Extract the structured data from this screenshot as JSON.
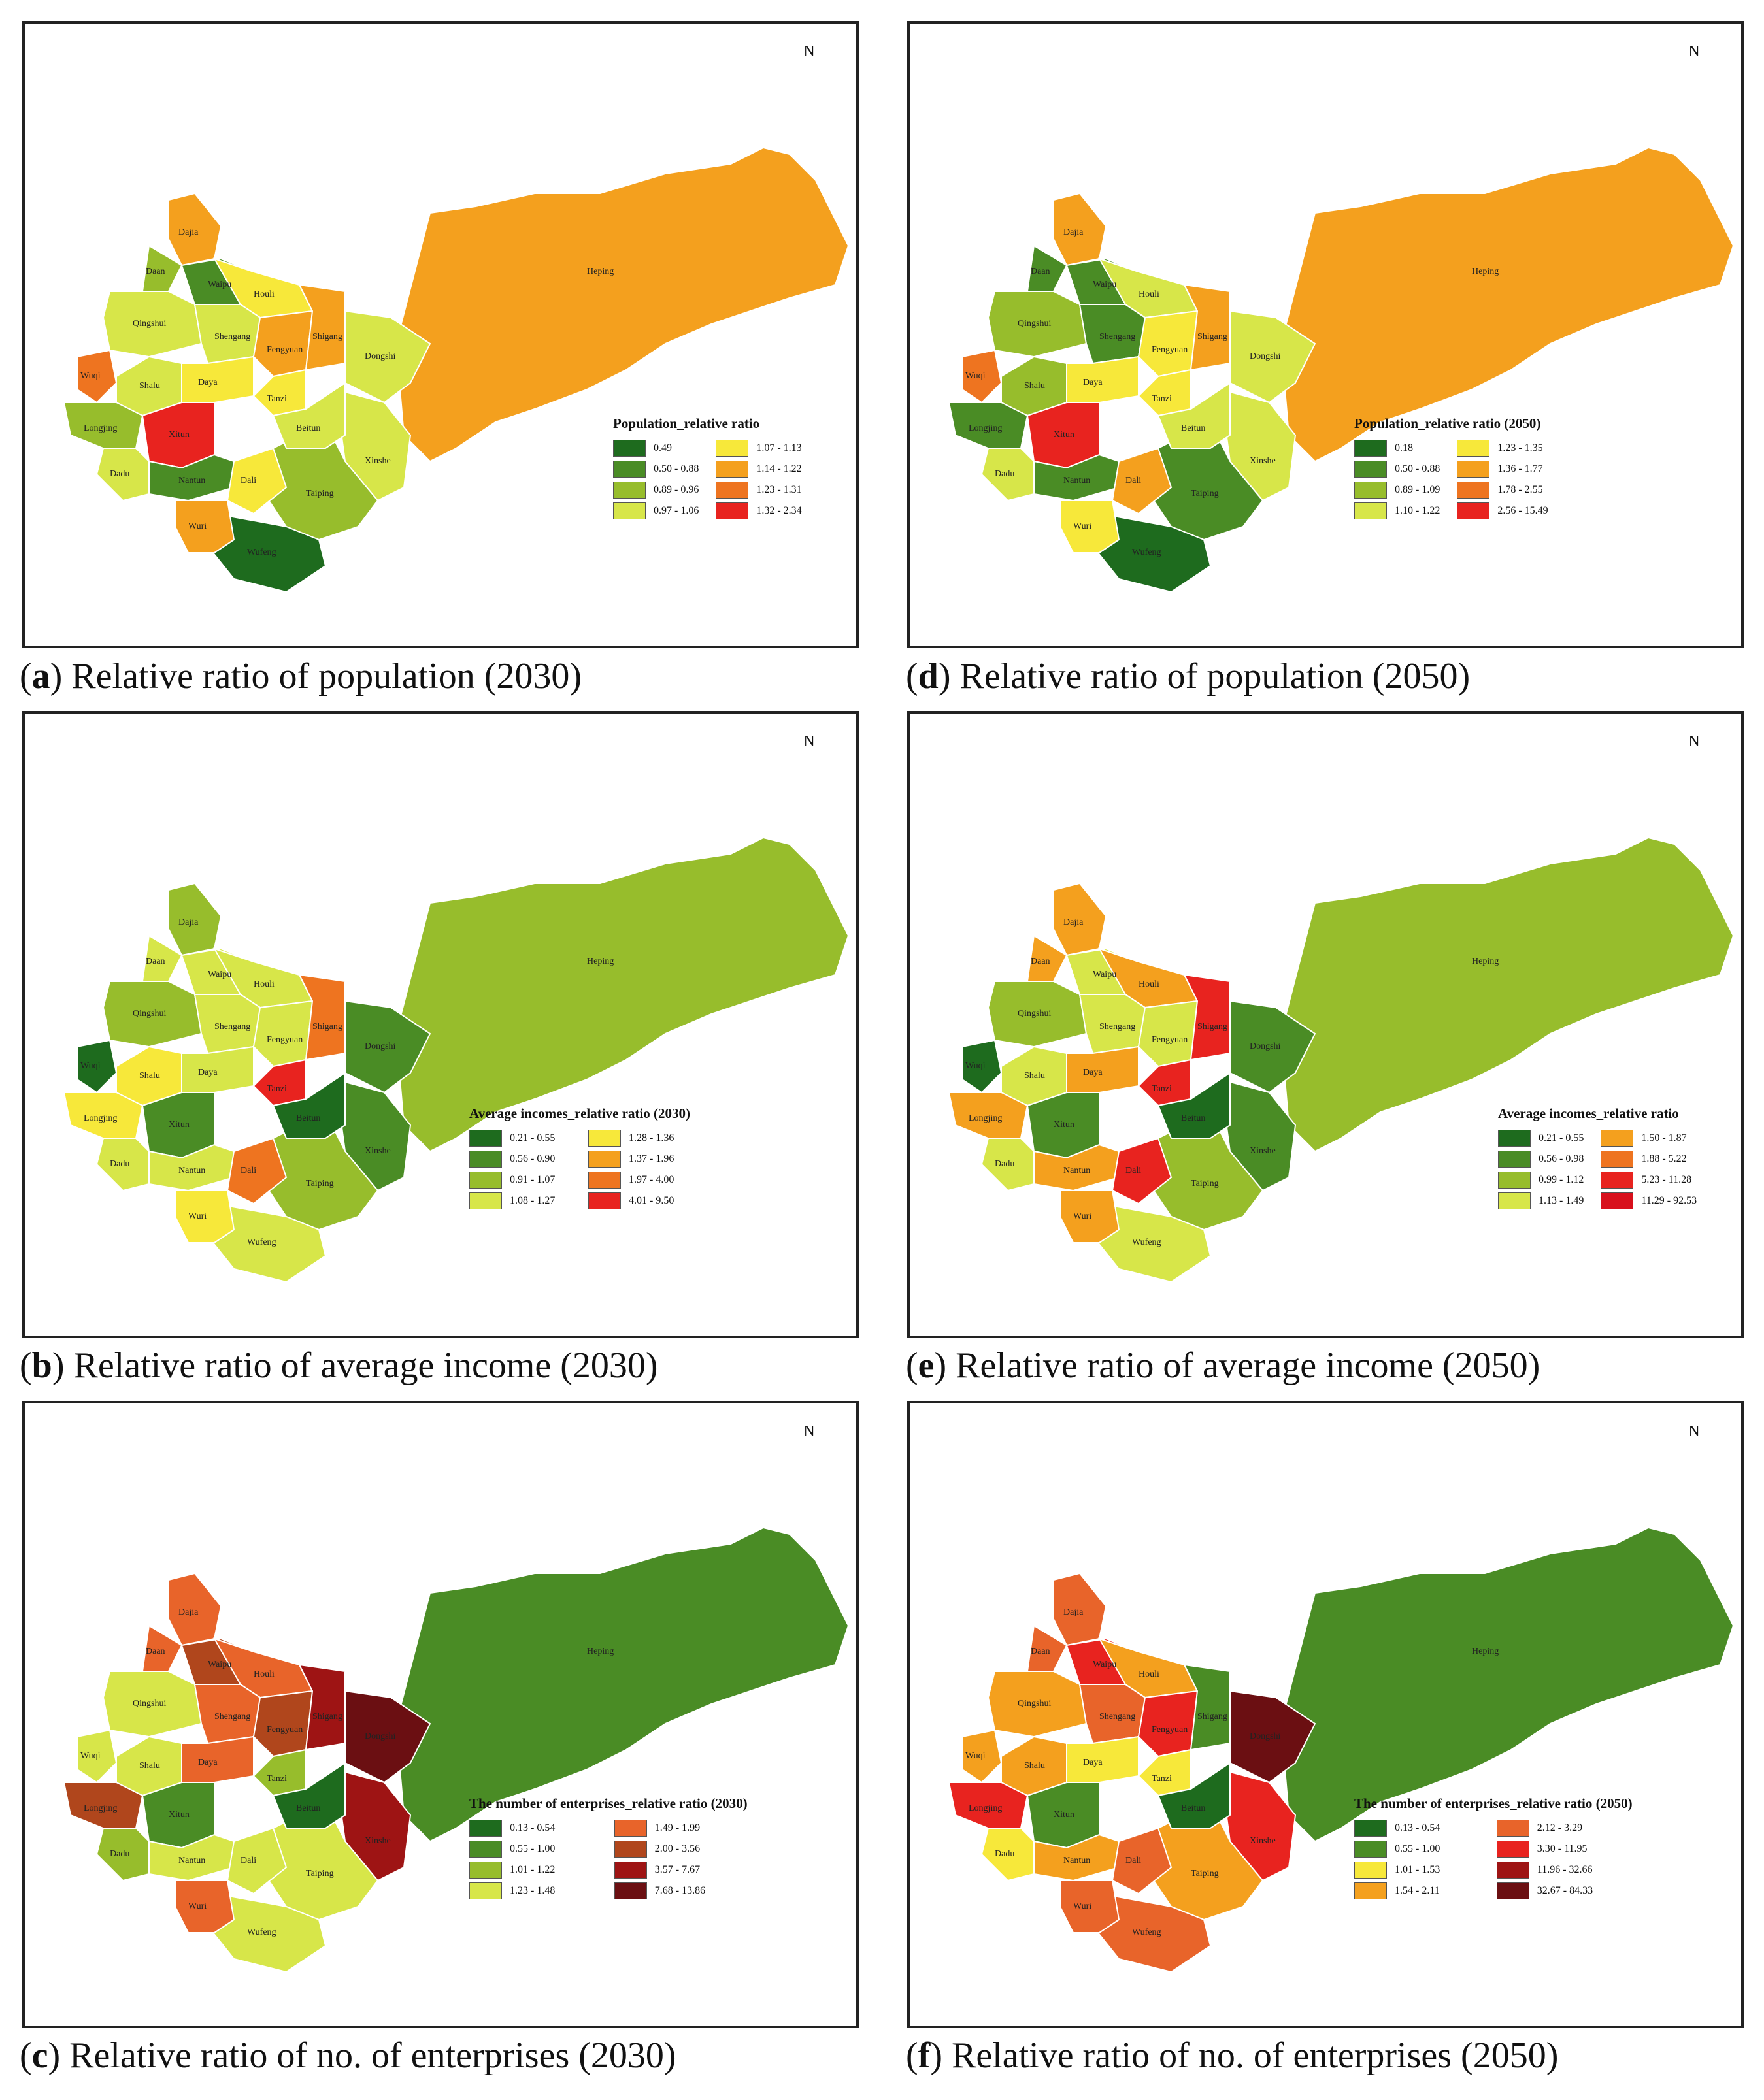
{
  "panels": [
    {
      "id": "a",
      "letter": "a",
      "caption": ") Relative ratio of population (2030)",
      "north": "N",
      "legend_title": "Population_relative ratio",
      "legend": [
        {
          "label": "0.49",
          "color": "#1e6b1e"
        },
        {
          "label": "0.50 - 0.88",
          "color": "#4a8c25"
        },
        {
          "label": "0.89 - 0.96",
          "color": "#97bd2c"
        },
        {
          "label": "0.97 - 1.06",
          "color": "#d7e649"
        },
        {
          "label": "1.07 - 1.13",
          "color": "#f7e83a"
        },
        {
          "label": "1.14 - 1.22",
          "color": "#f4a01e"
        },
        {
          "label": "1.23 - 1.31",
          "color": "#ee7420"
        },
        {
          "label": "1.32 - 2.34",
          "color": "#e8231f"
        }
      ],
      "colors": {
        "heping": "#f4a01e",
        "dongshi": "#d7e649",
        "xinshe": "#d7e649",
        "taiping": "#97bd2c",
        "wufeng": "#1e6b1e",
        "dajia": "#f4a01e",
        "daan": "#97bd2c",
        "waipu": "#4a8c25",
        "houli": "#f7e83a",
        "qingshui": "#d7e649",
        "shengang": "#d7e649",
        "fengyuan": "#f4a01e",
        "shigang": "#f4a01e",
        "wuqi": "#ee7420",
        "shalu": "#d7e649",
        "daya": "#f7e83a",
        "tanzi": "#f7e83a",
        "beitun": "#d7e649",
        "longjing": "#97bd2c",
        "xitun": "#e8231f",
        "dadu": "#d7e649",
        "nantun": "#4a8c25",
        "dali": "#f7e83a",
        "wuri": "#f4a01e"
      }
    },
    {
      "id": "b",
      "letter": "b",
      "caption": ") Relative ratio of average income (2030)",
      "north": "N",
      "legend_title": "Average incomes_relative ratio (2030)",
      "legend": [
        {
          "label": "0.21 - 0.55",
          "color": "#1e6b1e"
        },
        {
          "label": "0.56 - 0.90",
          "color": "#4a8c25"
        },
        {
          "label": "0.91 - 1.07",
          "color": "#97bd2c"
        },
        {
          "label": "1.08 - 1.27",
          "color": "#d7e649"
        },
        {
          "label": "1.28 - 1.36",
          "color": "#f7e83a"
        },
        {
          "label": "1.37 - 1.96",
          "color": "#f4a01e"
        },
        {
          "label": "1.97 - 4.00",
          "color": "#ee7420"
        },
        {
          "label": "4.01 - 9.50",
          "color": "#e8231f"
        }
      ],
      "colors": {
        "heping": "#97bd2c",
        "dongshi": "#4a8c25",
        "xinshe": "#4a8c25",
        "taiping": "#97bd2c",
        "wufeng": "#d7e649",
        "dajia": "#97bd2c",
        "daan": "#d7e649",
        "waipu": "#d7e649",
        "houli": "#d7e649",
        "qingshui": "#97bd2c",
        "shengang": "#d7e649",
        "fengyuan": "#d7e649",
        "shigang": "#ee7420",
        "wuqi": "#1e6b1e",
        "shalu": "#f7e83a",
        "daya": "#d7e649",
        "tanzi": "#e8231f",
        "beitun": "#1e6b1e",
        "longjing": "#f7e83a",
        "xitun": "#4a8c25",
        "dadu": "#d7e649",
        "nantun": "#d7e649",
        "dali": "#ee7420",
        "wuri": "#f7e83a"
      }
    },
    {
      "id": "c",
      "letter": "c",
      "caption": ") Relative ratio of no. of enterprises (2030)",
      "north": "N",
      "legend_title": "The number of enterprises_relative ratio (2030)",
      "legend": [
        {
          "label": "0.13 - 0.54",
          "color": "#1e6b1e"
        },
        {
          "label": "0.55 - 1.00",
          "color": "#4a8c25"
        },
        {
          "label": "1.01 - 1.22",
          "color": "#97bd2c"
        },
        {
          "label": "1.23 - 1.48",
          "color": "#d7e649"
        },
        {
          "label": "1.49 - 1.99",
          "color": "#e8642a"
        },
        {
          "label": "2.00 - 3.56",
          "color": "#b0461c"
        },
        {
          "label": "3.57 - 7.67",
          "color": "#9e1414"
        },
        {
          "label": "7.68 - 13.86",
          "color": "#6b0f12"
        }
      ],
      "colors": {
        "heping": "#4a8c25",
        "dongshi": "#6b0f12",
        "xinshe": "#9e1414",
        "taiping": "#d7e649",
        "wufeng": "#d7e649",
        "dajia": "#e8642a",
        "daan": "#e8642a",
        "waipu": "#b0461c",
        "houli": "#e8642a",
        "qingshui": "#d7e649",
        "shengang": "#e8642a",
        "fengyuan": "#b0461c",
        "shigang": "#9e1414",
        "wuqi": "#d7e649",
        "shalu": "#d7e649",
        "daya": "#e8642a",
        "tanzi": "#97bd2c",
        "beitun": "#1e6b1e",
        "longjing": "#b0461c",
        "xitun": "#4a8c25",
        "dadu": "#97bd2c",
        "nantun": "#d7e649",
        "dali": "#d7e649",
        "wuri": "#e8642a"
      }
    },
    {
      "id": "d",
      "letter": "d",
      "caption": ") Relative ratio of population (2050)",
      "north": "N",
      "legend_title": "Population_relative ratio (2050)",
      "legend": [
        {
          "label": "0.18",
          "color": "#1e6b1e"
        },
        {
          "label": "0.50 - 0.88",
          "color": "#4a8c25"
        },
        {
          "label": "0.89 - 1.09",
          "color": "#97bd2c"
        },
        {
          "label": "1.10 - 1.22",
          "color": "#d7e649"
        },
        {
          "label": "1.23 - 1.35",
          "color": "#f7e83a"
        },
        {
          "label": "1.36 - 1.77",
          "color": "#f4a01e"
        },
        {
          "label": "1.78 - 2.55",
          "color": "#ee7420"
        },
        {
          "label": "2.56 - 15.49",
          "color": "#e8231f"
        }
      ],
      "colors": {
        "heping": "#f4a01e",
        "dongshi": "#d7e649",
        "xinshe": "#d7e649",
        "taiping": "#4a8c25",
        "wufeng": "#1e6b1e",
        "dajia": "#f4a01e",
        "daan": "#4a8c25",
        "waipu": "#4a8c25",
        "houli": "#d7e649",
        "qingshui": "#97bd2c",
        "shengang": "#4a8c25",
        "fengyuan": "#f7e83a",
        "shigang": "#f4a01e",
        "wuqi": "#ee7420",
        "shalu": "#97bd2c",
        "daya": "#f7e83a",
        "tanzi": "#f7e83a",
        "beitun": "#d7e649",
        "longjing": "#4a8c25",
        "xitun": "#e8231f",
        "dadu": "#d7e649",
        "nantun": "#4a8c25",
        "dali": "#f4a01e",
        "wuri": "#f7e83a"
      }
    },
    {
      "id": "e",
      "letter": "e",
      "caption": ") Relative ratio of average income (2050)",
      "north": "N",
      "legend_title": "Average incomes_relative ratio",
      "legend": [
        {
          "label": "0.21 - 0.55",
          "color": "#1e6b1e"
        },
        {
          "label": "0.56 - 0.98",
          "color": "#4a8c25"
        },
        {
          "label": "0.99 - 1.12",
          "color": "#97bd2c"
        },
        {
          "label": "1.13 - 1.49",
          "color": "#d7e649"
        },
        {
          "label": "1.50 - 1.87",
          "color": "#f4a01e"
        },
        {
          "label": "1.88 - 5.22",
          "color": "#ee7420"
        },
        {
          "label": "5.23 - 11.28",
          "color": "#e8231f"
        },
        {
          "label": "11.29 - 92.53",
          "color": "#d8101c"
        }
      ],
      "colors": {
        "heping": "#97bd2c",
        "dongshi": "#4a8c25",
        "xinshe": "#4a8c25",
        "taiping": "#97bd2c",
        "wufeng": "#d7e649",
        "dajia": "#f4a01e",
        "daan": "#f4a01e",
        "waipu": "#d7e649",
        "houli": "#f4a01e",
        "qingshui": "#97bd2c",
        "shengang": "#d7e649",
        "fengyuan": "#d7e649",
        "shigang": "#e8231f",
        "wuqi": "#1e6b1e",
        "shalu": "#d7e649",
        "daya": "#f4a01e",
        "tanzi": "#e8231f",
        "beitun": "#1e6b1e",
        "longjing": "#f4a01e",
        "xitun": "#4a8c25",
        "dadu": "#d7e649",
        "nantun": "#f4a01e",
        "dali": "#e8231f",
        "wuri": "#f4a01e"
      }
    },
    {
      "id": "f",
      "letter": "f",
      "caption": ") Relative ratio of no. of enterprises (2050)",
      "north": "N",
      "legend_title": "The number of enterprises_relative ratio (2050)",
      "legend": [
        {
          "label": "0.13 - 0.54",
          "color": "#1e6b1e"
        },
        {
          "label": "0.55 - 1.00",
          "color": "#4a8c25"
        },
        {
          "label": "1.01 - 1.53",
          "color": "#f7e83a"
        },
        {
          "label": "1.54 - 2.11",
          "color": "#f4a01e"
        },
        {
          "label": "2.12 - 3.29",
          "color": "#e8642a"
        },
        {
          "label": "3.30 - 11.95",
          "color": "#e8231f"
        },
        {
          "label": "11.96 - 32.66",
          "color": "#9e1414"
        },
        {
          "label": "32.67 - 84.33",
          "color": "#6b0f12"
        }
      ],
      "colors": {
        "heping": "#4a8c25",
        "dongshi": "#6b0f12",
        "xinshe": "#e8231f",
        "taiping": "#f4a01e",
        "wufeng": "#e8642a",
        "dajia": "#e8642a",
        "daan": "#e8642a",
        "waipu": "#e8231f",
        "houli": "#f4a01e",
        "qingshui": "#f4a01e",
        "shengang": "#e8642a",
        "fengyuan": "#e8231f",
        "shigang": "#4a8c25",
        "wuqi": "#f4a01e",
        "shalu": "#f4a01e",
        "daya": "#f7e83a",
        "tanzi": "#f7e83a",
        "beitun": "#1e6b1e",
        "longjing": "#e8231f",
        "xitun": "#4a8c25",
        "dadu": "#f7e83a",
        "nantun": "#f4a01e",
        "dali": "#e8642a",
        "wuri": "#e8642a"
      }
    }
  ],
  "district_labels": {
    "heping": "Heping",
    "dongshi": "Dongshi",
    "xinshe": "Xinshe",
    "taiping": "Taiping",
    "wufeng": "Wufeng",
    "dajia": "Dajia",
    "daan": "Daan",
    "waipu": "Waipu",
    "houli": "Houli",
    "qingshui": "Qingshui",
    "shengang": "Shengang",
    "fengyuan": "Fengyuan",
    "shigang": "Shigang",
    "wuqi": "Wuqi",
    "shalu": "Shalu",
    "daya": "Daya",
    "tanzi": "Tanzi",
    "beitun": "Beitun",
    "longjing": "Longjing",
    "xitun": "Xitun",
    "dadu": "Dadu",
    "nantun": "Nantun",
    "dali": "Dali",
    "wuri": "Wuri"
  }
}
